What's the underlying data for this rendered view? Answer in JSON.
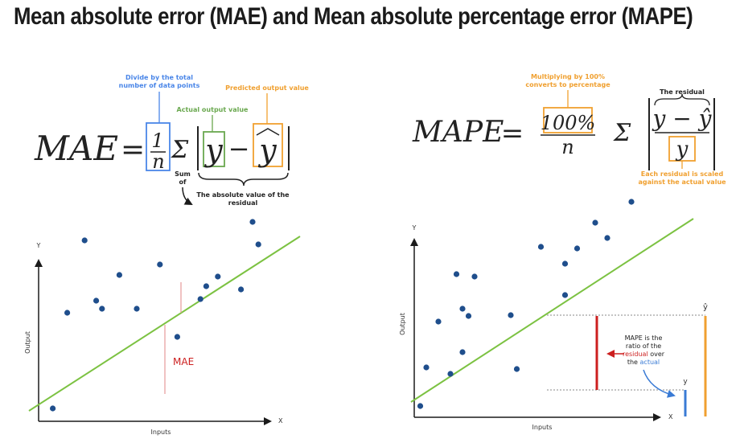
{
  "title": "Mean absolute error (MAE) and Mean absolute percentage error (MAPE)",
  "colors": {
    "blue_note": "#4a86e8",
    "green_note": "#6aa84f",
    "orange_note": "#f0a030",
    "regression_line": "#7cc242",
    "point": "#1f4e8c",
    "residual_red": "#cc1f1f",
    "orange_bar": "#f0a030",
    "blue_bar": "#3a7bd5"
  },
  "mae_formula": {
    "lhs": "MAE",
    "equals": "=",
    "numerator": "1",
    "denominator": "n",
    "sigma": "Σ",
    "y": "y",
    "minus": "−",
    "y_hat": "y",
    "note_divide_line1": "Divide by the total",
    "note_divide_line2": "number of data points",
    "note_predicted": "Predicted output value",
    "note_actual": "Actual output value",
    "note_sum_line1": "Sum",
    "note_sum_line2": "of",
    "note_abs_line1": "The absolute value of the",
    "note_abs_line2": "residual"
  },
  "mape_formula": {
    "lhs": "MAPE",
    "equals": "=",
    "numerator": "100%",
    "denominator": "n",
    "sigma": "Σ",
    "residual_expr": "y − ŷ",
    "y": "y",
    "note_multiply_line1": "Multiplying by 100%",
    "note_multiply_line2": "converts to percentage",
    "note_residual": "The residual",
    "note_scaled_line1": "Each residual is scaled",
    "note_scaled_line2": "against the actual value"
  },
  "mae_plot": {
    "y_axis_letter": "Y",
    "x_axis_letter": "X",
    "y_label": "Output",
    "x_label": "Inputs",
    "residual_label": "MAE",
    "points": [
      [
        0.5,
        16
      ],
      [
        3,
        135
      ],
      [
        6,
        225
      ],
      [
        8,
        150
      ],
      [
        9,
        140
      ],
      [
        12,
        182
      ],
      [
        15,
        140
      ],
      [
        19,
        195
      ],
      [
        22,
        105
      ],
      [
        26,
        152
      ],
      [
        27,
        168
      ],
      [
        29,
        180
      ],
      [
        33,
        164
      ],
      [
        36,
        220
      ],
      [
        35,
        248
      ]
    ]
  },
  "mape_plot": {
    "y_axis_letter": "Y",
    "x_axis_letter": "X",
    "y_label": "Output",
    "x_label": "Inputs",
    "y_hat_letter": "ŷ",
    "y_letter": "y",
    "note_line1": "MAPE is the",
    "note_line2": "ratio of the",
    "note_line3_red": "residual",
    "note_line3_rest": "over",
    "note_line4_pre": "the",
    "note_line4_blue": "actual",
    "points": [
      [
        1,
        14
      ],
      [
        2,
        62
      ],
      [
        4,
        119
      ],
      [
        6,
        54
      ],
      [
        7,
        178
      ],
      [
        8,
        81
      ],
      [
        8,
        135
      ],
      [
        9,
        126
      ],
      [
        10,
        175
      ],
      [
        16,
        127
      ],
      [
        17,
        60
      ],
      [
        21,
        212
      ],
      [
        25,
        152
      ],
      [
        25,
        191
      ],
      [
        27,
        210
      ],
      [
        30,
        242
      ],
      [
        32,
        223
      ],
      [
        36,
        268
      ]
    ]
  }
}
